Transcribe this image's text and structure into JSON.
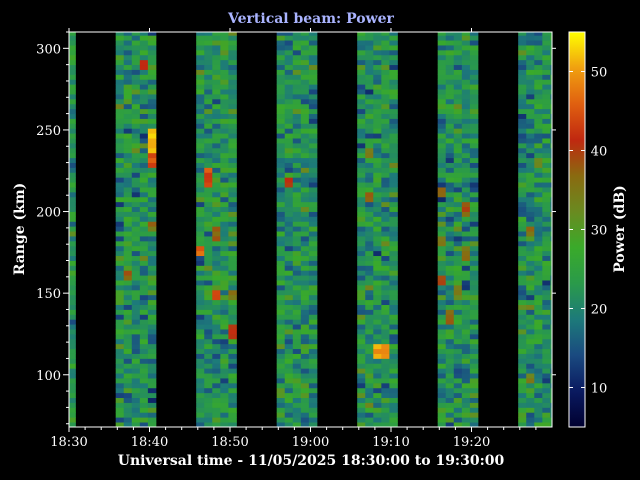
{
  "chart_data": {
    "type": "heatmap",
    "title": "Vertical beam: Power",
    "xlabel": "Universal time - 11/05/2025 18:30:00 to 19:30:00",
    "ylabel": "Range (km)",
    "colorbar_label": "Power (dB)",
    "x_unit": "minutes after 18:30 UT",
    "xlim": [
      0,
      60
    ],
    "ylim": [
      68,
      310
    ],
    "clim": [
      5,
      55
    ],
    "x_ticks": [
      {
        "value": 0,
        "label": "18:30"
      },
      {
        "value": 10,
        "label": "18:40"
      },
      {
        "value": 20,
        "label": "18:50"
      },
      {
        "value": 30,
        "label": "19:00"
      },
      {
        "value": 40,
        "label": "19:10"
      },
      {
        "value": 50,
        "label": "19:20"
      }
    ],
    "y_ticks": [
      100,
      150,
      200,
      250,
      300
    ],
    "colorbar_ticks": [
      10,
      20,
      30,
      40,
      50
    ],
    "colormap": [
      "#000030",
      "#0a1a60",
      "#1a4a80",
      "#1d7a7a",
      "#2a9a4a",
      "#3aaa2a",
      "#6a8a20",
      "#8a6a10",
      "#c02810",
      "#e06010",
      "#f0a010",
      "#ffff00"
    ],
    "observation_blocks_minutes": [
      [
        0,
        0.8
      ],
      [
        5.8,
        10.8
      ],
      [
        15.8,
        20.8
      ],
      [
        25.8,
        30.8
      ],
      [
        35.8,
        40.8
      ],
      [
        45.8,
        50.8
      ],
      [
        55.8,
        60
      ]
    ],
    "background_power_db": 22,
    "background_spread_db": 6,
    "enhancements": [
      {
        "t_start": 9.8,
        "t_end": 10.6,
        "range_lo": 236,
        "range_hi": 250,
        "power_db": 54
      },
      {
        "t_start": 9.8,
        "t_end": 10.6,
        "range_lo": 226,
        "range_hi": 236,
        "power_db": 46
      },
      {
        "t_start": 8.8,
        "t_end": 9.6,
        "range_lo": 286,
        "range_hi": 294,
        "power_db": 44
      },
      {
        "t_start": 9.8,
        "t_end": 10.6,
        "range_lo": 188,
        "range_hi": 194,
        "power_db": 38
      },
      {
        "t_start": 6.8,
        "t_end": 7.6,
        "range_lo": 158,
        "range_hi": 164,
        "power_db": 40
      },
      {
        "t_start": 15.8,
        "t_end": 16.6,
        "range_lo": 172,
        "range_hi": 180,
        "power_db": 48
      },
      {
        "t_start": 16.8,
        "t_end": 17.6,
        "range_lo": 216,
        "range_hi": 228,
        "power_db": 46
      },
      {
        "t_start": 17.8,
        "t_end": 18.6,
        "range_lo": 146,
        "range_hi": 152,
        "power_db": 44
      },
      {
        "t_start": 17.8,
        "t_end": 18.6,
        "range_lo": 182,
        "range_hi": 190,
        "power_db": 40
      },
      {
        "t_start": 19.8,
        "t_end": 20.6,
        "range_lo": 122,
        "range_hi": 132,
        "power_db": 44
      },
      {
        "t_start": 19.8,
        "t_end": 20.6,
        "range_lo": 146,
        "range_hi": 152,
        "power_db": 38
      },
      {
        "t_start": 26.8,
        "t_end": 27.6,
        "range_lo": 214,
        "range_hi": 220,
        "power_db": 42
      },
      {
        "t_start": 30.8,
        "t_end": 31.6,
        "range_lo": 186,
        "range_hi": 192,
        "power_db": 38
      },
      {
        "t_start": 36.8,
        "t_end": 37.6,
        "range_lo": 232,
        "range_hi": 238,
        "power_db": 36
      },
      {
        "t_start": 36.8,
        "t_end": 37.6,
        "range_lo": 206,
        "range_hi": 212,
        "power_db": 38
      },
      {
        "t_start": 37.8,
        "t_end": 39.6,
        "range_lo": 110,
        "range_hi": 118,
        "power_db": 52
      },
      {
        "t_start": 39.8,
        "t_end": 40.6,
        "range_lo": 226,
        "range_hi": 230,
        "power_db": 36
      },
      {
        "t_start": 45.8,
        "t_end": 46.6,
        "range_lo": 154,
        "range_hi": 160,
        "power_db": 42
      },
      {
        "t_start": 45.8,
        "t_end": 46.6,
        "range_lo": 178,
        "range_hi": 184,
        "power_db": 38
      },
      {
        "t_start": 45.8,
        "t_end": 46.6,
        "range_lo": 208,
        "range_hi": 214,
        "power_db": 38
      },
      {
        "t_start": 46.8,
        "t_end": 47.6,
        "range_lo": 132,
        "range_hi": 140,
        "power_db": 40
      },
      {
        "t_start": 47.8,
        "t_end": 48.6,
        "range_lo": 148,
        "range_hi": 156,
        "power_db": 36
      },
      {
        "t_start": 48.8,
        "t_end": 49.6,
        "range_lo": 198,
        "range_hi": 206,
        "power_db": 40
      },
      {
        "t_start": 48.8,
        "t_end": 49.6,
        "range_lo": 170,
        "range_hi": 178,
        "power_db": 38
      },
      {
        "t_start": 56.8,
        "t_end": 57.6,
        "range_lo": 186,
        "range_hi": 192,
        "power_db": 38
      },
      {
        "t_start": 56.8,
        "t_end": 57.6,
        "range_lo": 96,
        "range_hi": 102,
        "power_db": 36
      },
      {
        "t_start": 57.8,
        "t_end": 58.6,
        "range_lo": 226,
        "range_hi": 232,
        "power_db": 36
      },
      {
        "t_start": 3.8,
        "t_end": 4.6,
        "range_lo": 212,
        "range_hi": 218,
        "power_db": 32
      }
    ]
  }
}
